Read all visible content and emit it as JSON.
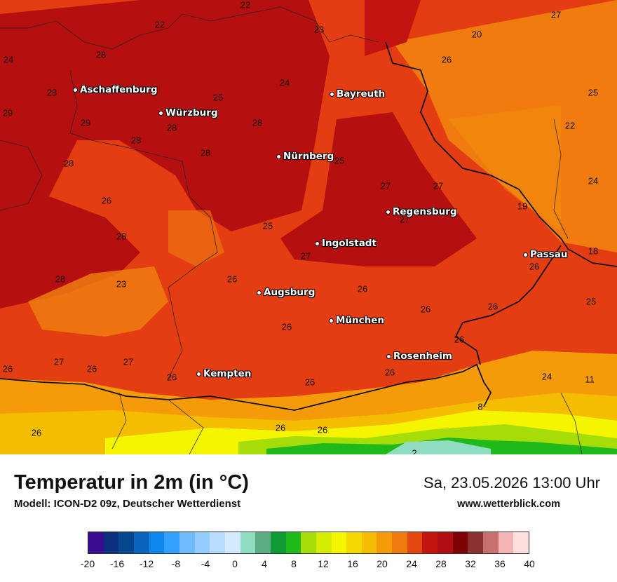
{
  "header": {
    "title": "Temperatur in 2m (in °C)",
    "model": "Modell: ICON-D2 09z, Deutscher Wetterdienst",
    "datetime": "Sa, 23.05.2026 13:00 Uhr",
    "website": "www.wetterblick.com"
  },
  "cities": [
    {
      "name": "Aschaffenburg"
    },
    {
      "name": "Würzburg"
    },
    {
      "name": "Bayreuth"
    },
    {
      "name": "Nürnberg"
    },
    {
      "name": "Regensburg"
    },
    {
      "name": "Ingolstadt"
    },
    {
      "name": "Passau"
    },
    {
      "name": "Augsburg"
    },
    {
      "name": "München"
    },
    {
      "name": "Rosenheim"
    },
    {
      "name": "Kempten"
    }
  ],
  "temperature_labels": [
    "22",
    "23",
    "27",
    "20",
    "22",
    "24",
    "28",
    "26",
    "28",
    "25",
    "24",
    "25",
    "29",
    "29",
    "28",
    "28",
    "22",
    "28",
    "28",
    "28",
    "28",
    "25",
    "27",
    "27",
    "24",
    "26",
    "19",
    "27",
    "28",
    "25",
    "27",
    "18",
    "26",
    "28",
    "23",
    "26",
    "26",
    "25",
    "26",
    "26",
    "26",
    "27",
    "27",
    "26",
    "26",
    "26",
    "26",
    "24",
    "11",
    "26",
    "26",
    "26",
    "8",
    "2"
  ],
  "legend": {
    "ticks": [
      "-20",
      "-16",
      "-12",
      "-8",
      "-4",
      "0",
      "4",
      "8",
      "12",
      "16",
      "20",
      "24",
      "28",
      "32",
      "36",
      "40"
    ],
    "colors": [
      "#3b0b8f",
      "#0b2f7d",
      "#06468f",
      "#0a64bd",
      "#0d86ee",
      "#33a0ff",
      "#70bbff",
      "#94ccff",
      "#b7dcff",
      "#d6eaff",
      "#90dcc0",
      "#5cad83",
      "#0f9a35",
      "#1fba1a",
      "#a6dc08",
      "#d6ec00",
      "#f5f500",
      "#f2d800",
      "#f5bd00",
      "#f59b0a",
      "#f07c10",
      "#e4470f",
      "#c4140f",
      "#b10e14",
      "#7e0205",
      "#8a3030",
      "#c87070",
      "#f5b4b4",
      "#ffdede"
    ]
  }
}
